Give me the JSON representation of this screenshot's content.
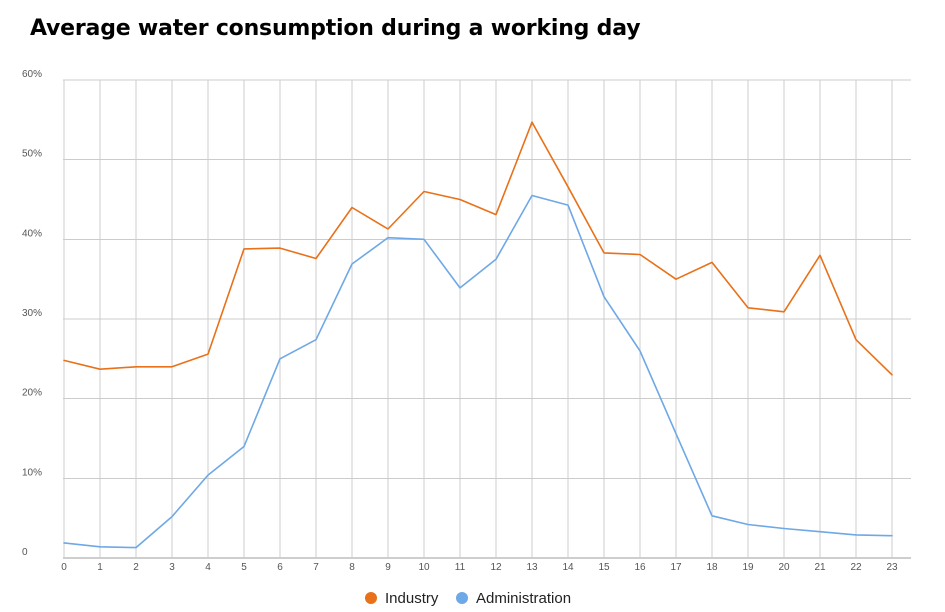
{
  "chart_data": {
    "type": "line",
    "title": "Average water consumption during a working day",
    "xlabel": "",
    "ylabel": "",
    "ylim": [
      0,
      60
    ],
    "y_ticks": [
      0,
      10,
      20,
      30,
      40,
      50,
      60
    ],
    "y_tick_labels": [
      "0",
      "10%",
      "20%",
      "30%",
      "40%",
      "50%",
      "60%"
    ],
    "x": [
      0,
      1,
      2,
      3,
      4,
      5,
      6,
      7,
      8,
      9,
      10,
      11,
      12,
      13,
      14,
      15,
      16,
      17,
      18,
      19,
      20,
      21,
      22,
      23
    ],
    "x_tick_labels": [
      "0",
      "1",
      "2",
      "3",
      "4",
      "5",
      "6",
      "7",
      "8",
      "9",
      "10",
      "11",
      "12",
      "13",
      "14",
      "15",
      "16",
      "17",
      "18",
      "19",
      "20",
      "21",
      "22",
      "23"
    ],
    "grid": true,
    "legend_position": "bottom-center",
    "series": [
      {
        "name": "Industry",
        "color": "#e8711a",
        "values": [
          24.8,
          23.7,
          24.0,
          24.0,
          25.6,
          38.8,
          38.9,
          37.6,
          44.0,
          41.3,
          46.0,
          45.0,
          43.1,
          54.7,
          46.6,
          38.3,
          38.1,
          35.0,
          37.1,
          31.4,
          30.9,
          38.0,
          27.4,
          23.0
        ]
      },
      {
        "name": "Administration",
        "color": "#6ea8e6",
        "values": [
          1.9,
          1.4,
          1.3,
          5.2,
          10.4,
          14.0,
          25.0,
          27.4,
          36.9,
          40.2,
          40.0,
          33.9,
          37.5,
          45.5,
          44.3,
          32.8,
          26.0,
          15.6,
          5.3,
          4.2,
          3.7,
          3.3,
          2.9,
          2.8
        ]
      }
    ]
  }
}
